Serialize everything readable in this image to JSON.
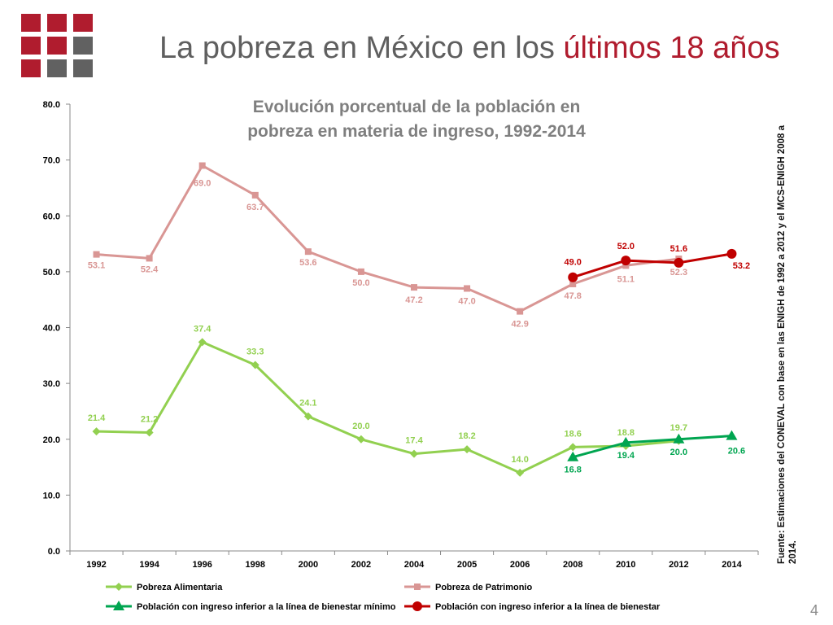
{
  "slide": {
    "title_prefix": "La pobreza en México en los ",
    "title_highlight": "últimos 18 años",
    "page_number": "4",
    "source_note": "Fuente: Estimaciones del CONEVAL con base en las ENIGH de 1992 a 2012 y el MCS-ENIGH 2008 a 2014."
  },
  "colors": {
    "accent": "#b01c2e",
    "logo_red": "#b01c2e",
    "logo_gray": "#616161",
    "pobreza_alimentaria": "#92d050",
    "pobreza_patrimonio": "#d99694",
    "bienestar_minimo": "#00a550",
    "bienestar": "#c00000"
  },
  "chart_data": {
    "type": "line",
    "title": "Evolución porcentual de la población en pobreza en materia de ingreso, 1992-2014",
    "title_lines": [
      "Evolución porcentual de la población en",
      "pobreza en materia de ingreso, 1992-2014"
    ],
    "categories": [
      "1992",
      "1994",
      "1996",
      "1998",
      "2000",
      "2002",
      "2004",
      "2005",
      "2006",
      "2008",
      "2010",
      "2012",
      "2014"
    ],
    "ylim": [
      0,
      80
    ],
    "yticks": [
      "0.0",
      "10.0",
      "20.0",
      "30.0",
      "40.0",
      "50.0",
      "60.0",
      "70.0",
      "80.0"
    ],
    "grid": false,
    "legend_position": "bottom",
    "series": [
      {
        "name": "Pobreza Alimentaria",
        "marker": "diamond",
        "color": "#92d050",
        "values": [
          21.4,
          21.2,
          37.4,
          33.3,
          24.1,
          20.0,
          17.4,
          18.2,
          14.0,
          18.6,
          18.8,
          19.7,
          null
        ],
        "labels": [
          "21.4",
          "21.2",
          "37.4",
          "33.3",
          "24.1",
          "20.0",
          "17.4",
          "18.2",
          "14.0",
          "18.6",
          "18.8",
          "19.7",
          null
        ]
      },
      {
        "name": "Pobreza de Patrimonio",
        "marker": "square",
        "color": "#d99694",
        "values": [
          53.1,
          52.4,
          69.0,
          63.7,
          53.6,
          50.0,
          47.2,
          47.0,
          42.9,
          47.8,
          51.1,
          52.3,
          null
        ],
        "labels": [
          "53.1",
          "52.4",
          "69.0",
          "63.7",
          "53.6",
          "50.0",
          "47.2",
          "47.0",
          "42.9",
          "47.8",
          "51.1",
          "52.3",
          null
        ]
      },
      {
        "name": "Población con ingreso inferior a la línea de bienestar mínimo",
        "marker": "triangle",
        "color": "#00a550",
        "values": [
          null,
          null,
          null,
          null,
          null,
          null,
          null,
          null,
          null,
          16.8,
          19.4,
          20.0,
          20.6
        ],
        "labels": [
          null,
          null,
          null,
          null,
          null,
          null,
          null,
          null,
          null,
          "16.8",
          "19.4",
          "20.0",
          "20.6"
        ]
      },
      {
        "name": "Población con ingreso inferior a la línea de bienestar",
        "marker": "circle",
        "color": "#c00000",
        "values": [
          null,
          null,
          null,
          null,
          null,
          null,
          null,
          null,
          null,
          49.0,
          52.0,
          51.6,
          53.2
        ],
        "labels": [
          null,
          null,
          null,
          null,
          null,
          null,
          null,
          null,
          null,
          "49.0",
          "52.0",
          "51.6",
          "53.2"
        ]
      }
    ]
  }
}
